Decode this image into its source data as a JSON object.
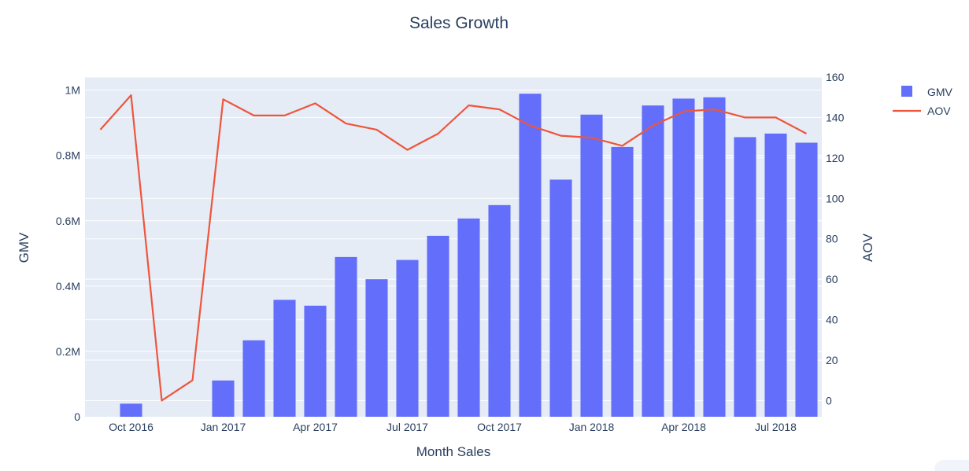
{
  "chart_data": {
    "type": "bar",
    "title": "Sales Growth",
    "xlabel": "Month Sales",
    "x": [
      "2016-09",
      "2016-10",
      "2016-11",
      "2016-12",
      "2017-01",
      "2017-02",
      "2017-03",
      "2017-04",
      "2017-05",
      "2017-06",
      "2017-07",
      "2017-08",
      "2017-09",
      "2017-10",
      "2017-11",
      "2017-12",
      "2018-01",
      "2018-02",
      "2018-03",
      "2018-04",
      "2018-05",
      "2018-06",
      "2018-07",
      "2018-08"
    ],
    "x_tick_labels": [
      "Oct 2016",
      "Jan 2017",
      "Apr 2017",
      "Jul 2017",
      "Oct 2017",
      "Jan 2018",
      "Apr 2018",
      "Jul 2018"
    ],
    "series": [
      {
        "name": "GMV",
        "type": "bar",
        "axis": "y",
        "color": "#636efa",
        "values": [
          0,
          40000,
          0,
          0,
          111000,
          234000,
          358000,
          340000,
          489000,
          421000,
          480000,
          554000,
          607000,
          648000,
          989000,
          726000,
          925000,
          826000,
          953000,
          974000,
          978000,
          856000,
          867000,
          839000
        ]
      },
      {
        "name": "AOV",
        "type": "line",
        "axis": "y2",
        "color": "#ef553b",
        "values": [
          134,
          151,
          0,
          10,
          149,
          141,
          141,
          147,
          137,
          134,
          124,
          132,
          146,
          144,
          136,
          131,
          130,
          126,
          136,
          143,
          144,
          140,
          140,
          132
        ]
      }
    ],
    "y": {
      "label": "GMV",
      "range": [
        0,
        1040000
      ],
      "ticks": [
        0,
        200000,
        400000,
        600000,
        800000,
        1000000
      ],
      "tick_labels": [
        "0",
        "0.2M",
        "0.4M",
        "0.6M",
        "0.8M",
        "1M"
      ]
    },
    "y2": {
      "label": "AOV",
      "range": [
        -8,
        160
      ],
      "ticks": [
        0,
        20,
        40,
        60,
        80,
        100,
        120,
        140,
        160
      ],
      "tick_labels": [
        "0",
        "20",
        "40",
        "60",
        "80",
        "100",
        "120",
        "140",
        "160"
      ]
    },
    "grid": true,
    "legend": "top-right",
    "plot_bg": "#e5ecf6",
    "text_color": "#2a3f5f"
  }
}
